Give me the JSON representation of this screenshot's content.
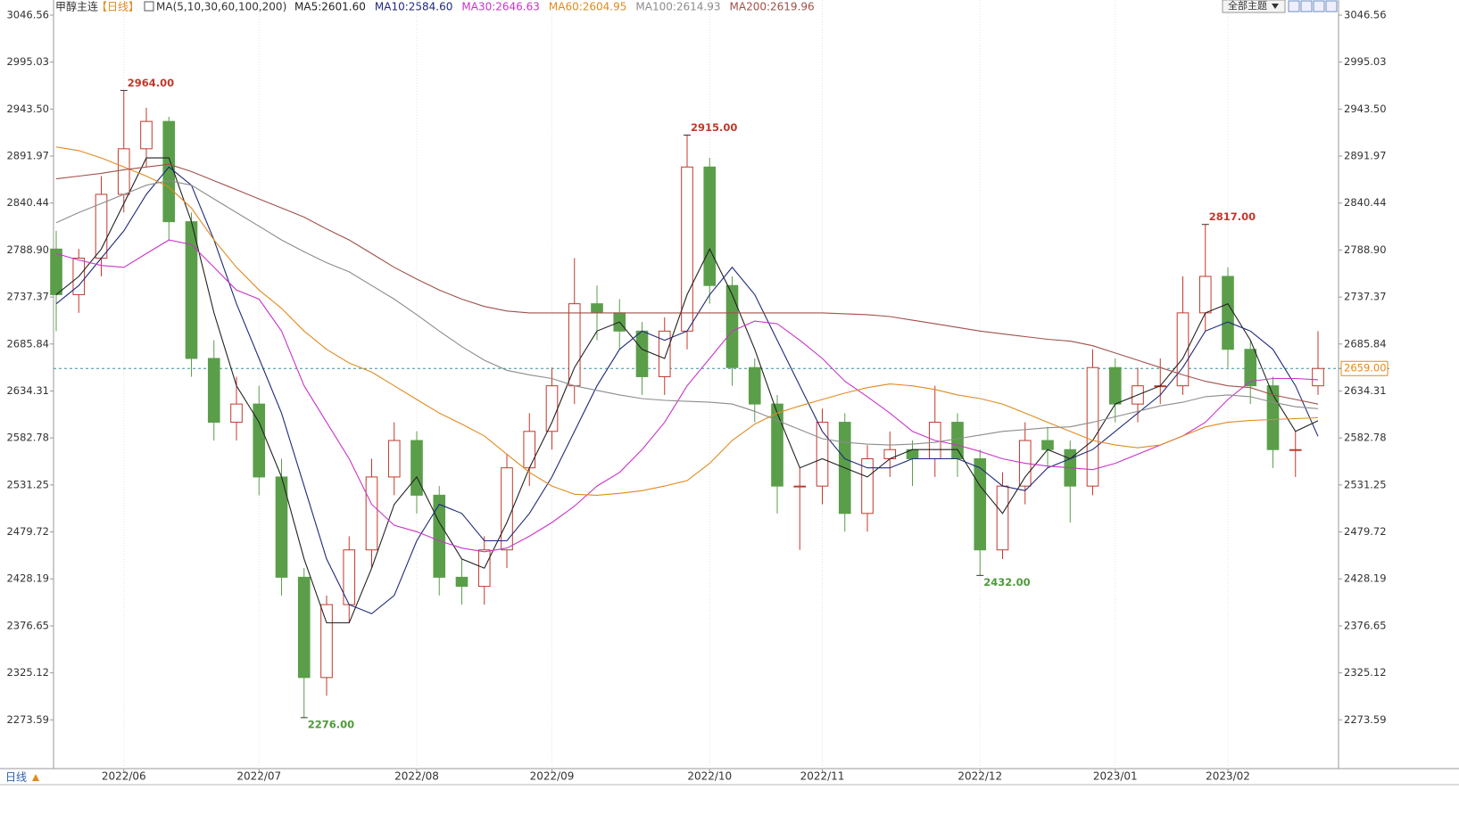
{
  "chart_data": {
    "type": "candlestick",
    "title": "甲醇主连",
    "period": "【日线】",
    "ma_header": "MA(5,10,30,60,100,200)",
    "period_label": "日线",
    "theme_button": "全部主题",
    "categories": [
      null,
      null,
      null,
      "2022/06",
      null,
      null,
      null,
      null,
      null,
      "2022/07",
      null,
      null,
      null,
      null,
      null,
      null,
      "2022/08",
      null,
      null,
      null,
      null,
      null,
      "2022/09",
      null,
      null,
      null,
      null,
      null,
      null,
      "2022/10",
      null,
      null,
      null,
      null,
      "2022/11",
      null,
      null,
      null,
      null,
      null,
      null,
      "2022/12",
      null,
      null,
      null,
      null,
      null,
      "2023/01",
      null,
      null,
      null,
      null,
      "2023/02",
      null,
      null,
      null,
      null
    ],
    "open": [
      2790,
      2740,
      2780,
      2850,
      2900,
      2930,
      2820,
      2670,
      2600,
      2620,
      2540,
      2430,
      2320,
      2400,
      2460,
      2540,
      2580,
      2520,
      2430,
      2420,
      2460,
      2550,
      2590,
      2640,
      2730,
      2720,
      2700,
      2650,
      2700,
      2880,
      2750,
      2660,
      2620,
      2530,
      2530,
      2600,
      2500,
      2560,
      2570,
      2560,
      2600,
      2560,
      2460,
      2530,
      2580,
      2570,
      2530,
      2660,
      2620,
      2640,
      2640,
      2720,
      2760,
      2680,
      2640,
      2570,
      2640
    ],
    "high": [
      2810,
      2790,
      2870,
      2964,
      2945,
      2935,
      2830,
      2690,
      2650,
      2640,
      2560,
      2440,
      2410,
      2475,
      2560,
      2600,
      2590,
      2530,
      2450,
      2475,
      2565,
      2610,
      2660,
      2780,
      2750,
      2735,
      2710,
      2715,
      2915,
      2890,
      2760,
      2670,
      2630,
      2550,
      2615,
      2610,
      2575,
      2590,
      2580,
      2640,
      2610,
      2570,
      2545,
      2600,
      2595,
      2580,
      2680,
      2670,
      2660,
      2670,
      2760,
      2817,
      2770,
      2690,
      2650,
      2590,
      2700
    ],
    "low": [
      2700,
      2720,
      2760,
      2830,
      2880,
      2800,
      2650,
      2580,
      2580,
      2520,
      2410,
      2276,
      2300,
      2380,
      2440,
      2520,
      2500,
      2410,
      2400,
      2400,
      2440,
      2530,
      2570,
      2620,
      2690,
      2680,
      2630,
      2630,
      2680,
      2730,
      2640,
      2600,
      2500,
      2460,
      2510,
      2480,
      2480,
      2540,
      2530,
      2540,
      2540,
      2432,
      2450,
      2510,
      2550,
      2490,
      2520,
      2600,
      2600,
      2620,
      2630,
      2700,
      2660,
      2620,
      2550,
      2540,
      2630
    ],
    "close": [
      2740,
      2780,
      2850,
      2900,
      2930,
      2820,
      2670,
      2600,
      2620,
      2540,
      2430,
      2320,
      2400,
      2460,
      2540,
      2580,
      2520,
      2430,
      2420,
      2460,
      2550,
      2590,
      2640,
      2730,
      2720,
      2700,
      2650,
      2700,
      2880,
      2750,
      2660,
      2620,
      2530,
      2530,
      2600,
      2500,
      2560,
      2570,
      2560,
      2600,
      2560,
      2460,
      2530,
      2580,
      2570,
      2530,
      2660,
      2620,
      2640,
      2640,
      2720,
      2760,
      2680,
      2640,
      2570,
      2570,
      2659
    ],
    "up_color": "#c0392b",
    "down_color": "#5b9e4a",
    "series": [
      {
        "name": "MA5",
        "label": "MA5:2601.60",
        "color": "#222222",
        "values": [
          2740,
          2760,
          2790,
          2840,
          2890,
          2890,
          2820,
          2720,
          2640,
          2600,
          2540,
          2450,
          2380,
          2380,
          2440,
          2510,
          2540,
          2490,
          2450,
          2440,
          2490,
          2550,
          2600,
          2660,
          2700,
          2710,
          2680,
          2670,
          2740,
          2790,
          2740,
          2680,
          2610,
          2550,
          2560,
          2550,
          2540,
          2560,
          2570,
          2570,
          2570,
          2530,
          2500,
          2540,
          2570,
          2560,
          2580,
          2620,
          2630,
          2640,
          2670,
          2720,
          2730,
          2690,
          2630,
          2590,
          2601.6
        ]
      },
      {
        "name": "MA10",
        "label": "MA10:2584.60",
        "color": "#1f2a7a",
        "values": [
          2730,
          2750,
          2780,
          2810,
          2850,
          2880,
          2860,
          2800,
          2730,
          2670,
          2610,
          2530,
          2450,
          2400,
          2390,
          2410,
          2470,
          2510,
          2500,
          2470,
          2470,
          2500,
          2540,
          2590,
          2640,
          2680,
          2700,
          2690,
          2700,
          2740,
          2770,
          2740,
          2690,
          2640,
          2590,
          2560,
          2550,
          2550,
          2560,
          2560,
          2560,
          2550,
          2530,
          2525,
          2550,
          2560,
          2570,
          2590,
          2610,
          2630,
          2660,
          2700,
          2710,
          2700,
          2680,
          2640,
          2584.6
        ]
      },
      {
        "name": "MA30",
        "label": "MA30:2646.63",
        "color": "#c934c9",
        "values": [
          2785,
          2778,
          2772,
          2770,
          2785,
          2800,
          2795,
          2770,
          2745,
          2735,
          2700,
          2640,
          2600,
          2560,
          2510,
          2487,
          2480,
          2470,
          2462,
          2458,
          2462,
          2475,
          2490,
          2508,
          2530,
          2545,
          2570,
          2600,
          2640,
          2670,
          2700,
          2711,
          2708,
          2690,
          2670,
          2645,
          2628,
          2610,
          2590,
          2580,
          2575,
          2568,
          2560,
          2555,
          2552,
          2550,
          2548,
          2555,
          2565,
          2575,
          2585,
          2600,
          2625,
          2645,
          2648,
          2648,
          2646.63
        ]
      },
      {
        "name": "MA60",
        "label": "MA60:2604.95",
        "color": "#e08a1e",
        "values": [
          2902,
          2898,
          2890,
          2880,
          2870,
          2858,
          2835,
          2800,
          2770,
          2745,
          2725,
          2700,
          2680,
          2665,
          2655,
          2640,
          2625,
          2610,
          2598,
          2585,
          2565,
          2545,
          2530,
          2521,
          2520,
          2522,
          2525,
          2530,
          2536,
          2555,
          2580,
          2598,
          2610,
          2618,
          2625,
          2632,
          2638,
          2642,
          2640,
          2636,
          2630,
          2626,
          2620,
          2610,
          2600,
          2590,
          2580,
          2575,
          2572,
          2575,
          2585,
          2595,
          2600,
          2602,
          2603,
          2604,
          2604.95
        ]
      },
      {
        "name": "MA100",
        "label": "MA100:2614.93",
        "color": "#8c8c8c",
        "values": [
          2819,
          2830,
          2840,
          2850,
          2860,
          2865,
          2860,
          2845,
          2830,
          2815,
          2800,
          2787,
          2775,
          2765,
          2750,
          2735,
          2718,
          2700,
          2683,
          2668,
          2657,
          2652,
          2648,
          2640,
          2635,
          2630,
          2626,
          2624,
          2623,
          2622,
          2620,
          2612,
          2602,
          2592,
          2582,
          2578,
          2576,
          2575,
          2576,
          2578,
          2582,
          2586,
          2590,
          2592,
          2594,
          2595,
          2600,
          2606,
          2612,
          2618,
          2622,
          2628,
          2630,
          2628,
          2622,
          2617,
          2614.93
        ]
      },
      {
        "name": "MA200",
        "label": "MA200:2619.96",
        "color": "#a0504a",
        "values": [
          2867,
          2870,
          2873,
          2877,
          2880,
          2883,
          2875,
          2865,
          2855,
          2845,
          2835,
          2825,
          2812,
          2800,
          2785,
          2770,
          2757,
          2745,
          2735,
          2727,
          2722,
          2720,
          2720,
          2720,
          2720,
          2720,
          2720,
          2720,
          2720,
          2720,
          2720,
          2720,
          2720,
          2720,
          2720,
          2719,
          2718,
          2716,
          2712,
          2708,
          2704,
          2700,
          2697,
          2694,
          2691,
          2689,
          2684,
          2676,
          2668,
          2660,
          2652,
          2645,
          2640,
          2638,
          2630,
          2625,
          2619.96
        ]
      }
    ],
    "annotations": [
      {
        "value": 2964,
        "label": "2964.00"
      },
      {
        "value": 2915,
        "label": "2915.00"
      },
      {
        "value": 2817,
        "label": "2817.00"
      },
      {
        "value": 2276,
        "label": "2276.00"
      },
      {
        "value": 2432,
        "label": "2432.00"
      }
    ],
    "last_price": {
      "value": 2659,
      "label": "2659.00"
    },
    "ylim": [
      2222.06,
      3063.17
    ],
    "yticks": [
      2273.59,
      {
        "value": 2325.12,
        "label": "2325.12"
      },
      2376.65,
      2428.19,
      2479.72,
      2531.25,
      2582.78,
      2634.31,
      2685.84,
      2737.37,
      {
        "value": 2788.9,
        "label": "2788.90"
      },
      2840.44,
      2891.97,
      {
        "value": 2943.5,
        "label": "2943.50"
      },
      2995.03,
      3046.56
    ]
  }
}
